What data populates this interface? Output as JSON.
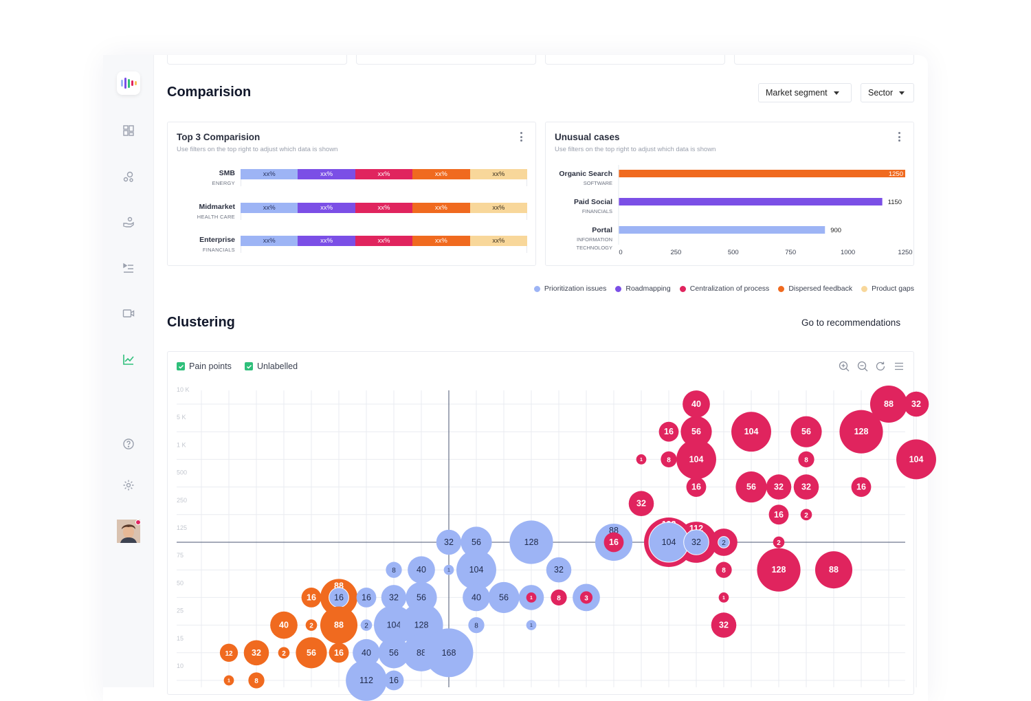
{
  "comparison": {
    "title": "Comparision",
    "filters": [
      "Market segment",
      "Sector"
    ]
  },
  "top3": {
    "title": "Top 3 Comparision",
    "subtitle": "Use filters on the top right to adjust which data is shown",
    "rows": [
      {
        "name": "SMB",
        "sector": "ENERGY",
        "values": [
          "xx%",
          "xx%",
          "xx%",
          "xx%",
          "xx%"
        ]
      },
      {
        "name": "Midmarket",
        "sector": "HEALTH CARE",
        "values": [
          "xx%",
          "xx%",
          "xx%",
          "xx%",
          "xx%"
        ]
      },
      {
        "name": "Enterprise",
        "sector": "FINANCIALS",
        "values": [
          "xx%",
          "xx%",
          "xx%",
          "xx%",
          "xx%"
        ]
      }
    ]
  },
  "unusual": {
    "title": "Unusual cases",
    "subtitle": "Use filters on the top right to adjust which data is shown"
  },
  "legend": [
    {
      "label": "Prioritization issues",
      "color": "#9db4f5"
    },
    {
      "label": "Roadmapping",
      "color": "#7b4fe6"
    },
    {
      "label": "Centralization of process",
      "color": "#e0245e"
    },
    {
      "label": "Dispersed feedback",
      "color": "#f06a1f"
    },
    {
      "label": "Product gaps",
      "color": "#f8d79a"
    }
  ],
  "clustering": {
    "title": "Clustering",
    "link": "Go to recommendations",
    "checkboxes": [
      "Pain points",
      "Unlabelled"
    ],
    "tools": [
      "zoom-in-icon",
      "zoom-out-icon",
      "refresh-icon",
      "menu-icon"
    ]
  },
  "chart_data": [
    {
      "type": "bar",
      "orientation": "horizontal",
      "categories": [
        {
          "label": "Organic Search",
          "sublabel": "SOFTWARE"
        },
        {
          "label": "Paid Social",
          "sublabel": "FINANCIALS"
        },
        {
          "label": "Portal",
          "sublabel": "INFORMATION TECHNOLOGY"
        }
      ],
      "values": [
        1250,
        1150,
        900
      ],
      "colors": [
        "#f06a1f",
        "#7b4fe6",
        "#9db4f5"
      ],
      "xticks": [
        "0",
        "250",
        "500",
        "750",
        "1000",
        "1250"
      ],
      "xlim": [
        0,
        1250
      ]
    },
    {
      "type": "scatter",
      "subtype": "bubble",
      "yticks": [
        "10 K",
        "5 K",
        "1 K",
        "500",
        "250",
        "125",
        "75",
        "50",
        "25",
        "15",
        "10"
      ],
      "colors": {
        "pain": "#e0245e",
        "unlabelled": "#9db4f5",
        "feedback": "#f06a1f"
      },
      "points": [
        {
          "col": 18,
          "row": 0,
          "v": 40,
          "s": "pain"
        },
        {
          "col": 25,
          "row": 0,
          "v": 88,
          "s": "pain"
        },
        {
          "col": 26,
          "row": 0,
          "v": 32,
          "s": "pain"
        },
        {
          "col": 17,
          "row": 1,
          "v": 16,
          "s": "pain"
        },
        {
          "col": 18,
          "row": 1,
          "v": 56,
          "s": "pain"
        },
        {
          "col": 20,
          "row": 1,
          "v": 104,
          "s": "pain"
        },
        {
          "col": 22,
          "row": 1,
          "v": 56,
          "s": "pain"
        },
        {
          "col": 24,
          "row": 1,
          "v": 128,
          "s": "pain"
        },
        {
          "col": 16,
          "row": 2,
          "v": 1,
          "s": "pain"
        },
        {
          "col": 17,
          "row": 2,
          "v": 8,
          "s": "pain"
        },
        {
          "col": 18,
          "row": 2,
          "v": 104,
          "s": "pain"
        },
        {
          "col": 22,
          "row": 2,
          "v": 8,
          "s": "pain"
        },
        {
          "col": 26,
          "row": 2,
          "v": 104,
          "s": "pain"
        },
        {
          "col": 18,
          "row": 3,
          "v": 16,
          "s": "pain"
        },
        {
          "col": 20,
          "row": 3,
          "v": 56,
          "s": "pain"
        },
        {
          "col": 21,
          "row": 3,
          "v": 32,
          "s": "pain"
        },
        {
          "col": 22,
          "row": 3,
          "v": 32,
          "s": "pain"
        },
        {
          "col": 24,
          "row": 3,
          "v": 16,
          "s": "pain"
        },
        {
          "col": 16,
          "row": 3.6,
          "v": 32,
          "s": "pain"
        },
        {
          "col": 21,
          "row": 4,
          "v": 16,
          "s": "pain"
        },
        {
          "col": 22,
          "row": 4,
          "v": 2,
          "s": "pain"
        },
        {
          "col": 17,
          "row": 5,
          "v": 192,
          "s": "pain"
        },
        {
          "col": 18,
          "row": 5,
          "v": 112,
          "s": "pain"
        },
        {
          "col": 19,
          "row": 5,
          "v": 40,
          "s": "pain"
        },
        {
          "col": 21,
          "row": 5,
          "v": 2,
          "s": "pain"
        },
        {
          "col": 15,
          "row": 5,
          "v": 88,
          "s": "unlabelled"
        },
        {
          "col": 15,
          "row": 5,
          "v": 16,
          "s": "pain"
        },
        {
          "col": 9,
          "row": 5,
          "v": 32,
          "s": "unlabelled"
        },
        {
          "col": 10,
          "row": 5,
          "v": 56,
          "s": "unlabelled"
        },
        {
          "col": 12,
          "row": 5,
          "v": 128,
          "s": "unlabelled"
        },
        {
          "col": 17,
          "row": 5,
          "v": 104,
          "s": "unlabelled"
        },
        {
          "col": 18,
          "row": 5,
          "v": 32,
          "s": "unlabelled"
        },
        {
          "col": 19,
          "row": 5,
          "v": 2,
          "s": "unlabelled"
        },
        {
          "col": 19,
          "row": 6,
          "v": 8,
          "s": "pain"
        },
        {
          "col": 21,
          "row": 6,
          "v": 128,
          "s": "pain"
        },
        {
          "col": 23,
          "row": 6,
          "v": 88,
          "s": "pain"
        },
        {
          "col": 7,
          "row": 6,
          "v": 8,
          "s": "unlabelled"
        },
        {
          "col": 8,
          "row": 6,
          "v": 40,
          "s": "unlabelled"
        },
        {
          "col": 9,
          "row": 6,
          "v": 1,
          "s": "unlabelled"
        },
        {
          "col": 10,
          "row": 6,
          "v": 104,
          "s": "unlabelled"
        },
        {
          "col": 13,
          "row": 6,
          "v": 32,
          "s": "unlabelled"
        },
        {
          "col": 4,
          "row": 7,
          "v": 16,
          "s": "feedback"
        },
        {
          "col": 5,
          "row": 7,
          "v": 88,
          "s": "feedback"
        },
        {
          "col": 5,
          "row": 7,
          "v": 16,
          "s": "unlabelled"
        },
        {
          "col": 6,
          "row": 7,
          "v": 16,
          "s": "unlabelled"
        },
        {
          "col": 7,
          "row": 7,
          "v": 32,
          "s": "unlabelled"
        },
        {
          "col": 8,
          "row": 7,
          "v": 56,
          "s": "unlabelled"
        },
        {
          "col": 10,
          "row": 7,
          "v": 40,
          "s": "unlabelled"
        },
        {
          "col": 11,
          "row": 7,
          "v": 56,
          "s": "unlabelled"
        },
        {
          "col": 12,
          "row": 7,
          "v": 32,
          "s": "unlabelled"
        },
        {
          "col": 12,
          "row": 7,
          "v": 1,
          "s": "pain"
        },
        {
          "col": 13,
          "row": 7,
          "v": 8,
          "s": "pain"
        },
        {
          "col": 14,
          "row": 7,
          "v": 40,
          "s": "unlabelled"
        },
        {
          "col": 14,
          "row": 7,
          "v": 3,
          "s": "pain"
        },
        {
          "col": 19,
          "row": 7,
          "v": 1,
          "s": "pain"
        },
        {
          "col": 3,
          "row": 8,
          "v": 40,
          "s": "feedback"
        },
        {
          "col": 4,
          "row": 8,
          "v": 2,
          "s": "feedback"
        },
        {
          "col": 5,
          "row": 8,
          "v": 88,
          "s": "feedback"
        },
        {
          "col": 6,
          "row": 8,
          "v": 2,
          "s": "unlabelled"
        },
        {
          "col": 7,
          "row": 8,
          "v": 104,
          "s": "unlabelled"
        },
        {
          "col": 8,
          "row": 8,
          "v": 128,
          "s": "unlabelled"
        },
        {
          "col": 10,
          "row": 8,
          "v": 8,
          "s": "unlabelled"
        },
        {
          "col": 12,
          "row": 8,
          "v": 1,
          "s": "unlabelled"
        },
        {
          "col": 19,
          "row": 8,
          "v": 32,
          "s": "pain"
        },
        {
          "col": 1,
          "row": 9,
          "v": 12,
          "s": "feedback"
        },
        {
          "col": 2,
          "row": 9,
          "v": 32,
          "s": "feedback"
        },
        {
          "col": 3,
          "row": 9,
          "v": 2,
          "s": "feedback"
        },
        {
          "col": 4,
          "row": 9,
          "v": 56,
          "s": "feedback"
        },
        {
          "col": 5,
          "row": 9,
          "v": 16,
          "s": "feedback"
        },
        {
          "col": 6,
          "row": 9,
          "v": 40,
          "s": "unlabelled"
        },
        {
          "col": 7,
          "row": 9,
          "v": 56,
          "s": "unlabelled"
        },
        {
          "col": 8,
          "row": 9,
          "v": 88,
          "s": "unlabelled"
        },
        {
          "col": 9,
          "row": 9,
          "v": 168,
          "s": "unlabelled"
        },
        {
          "col": 1,
          "row": 10,
          "v": 1,
          "s": "feedback"
        },
        {
          "col": 2,
          "row": 10,
          "v": 8,
          "s": "feedback"
        },
        {
          "col": 6,
          "row": 10,
          "v": 112,
          "s": "unlabelled"
        },
        {
          "col": 7,
          "row": 10,
          "v": 16,
          "s": "unlabelled"
        }
      ]
    }
  ]
}
